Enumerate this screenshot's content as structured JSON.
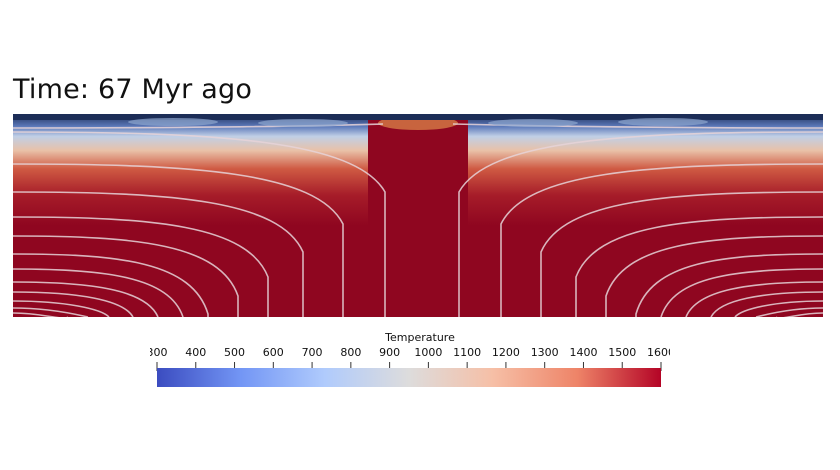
{
  "title": "Time: 67 Myr ago",
  "colorbar": {
    "title": "Temperature",
    "min": 300,
    "max": 1600,
    "ticks": [
      300,
      400,
      500,
      600,
      700,
      800,
      900,
      1000,
      1100,
      1200,
      1300,
      1400,
      1500,
      1600
    ],
    "colormap": [
      "#3b4cc0",
      "#7396f5",
      "#b0cbfc",
      "#dddcdc",
      "#f6bfa6",
      "#ee8468",
      "#b40426"
    ]
  },
  "field": {
    "description_colors": {
      "surface_cold": "#1c2d57",
      "lithosphere_blue": "#b6c6df",
      "hot_mantle": "#8f0620"
    }
  }
}
